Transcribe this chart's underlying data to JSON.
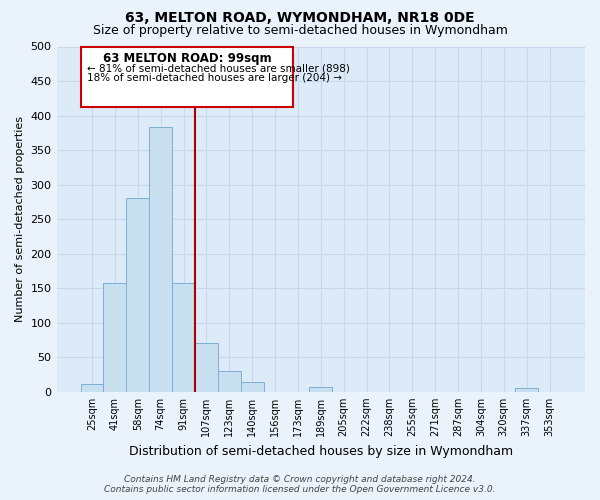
{
  "title": "63, MELTON ROAD, WYMONDHAM, NR18 0DE",
  "subtitle": "Size of property relative to semi-detached houses in Wymondham",
  "xlabel": "Distribution of semi-detached houses by size in Wymondham",
  "ylabel": "Number of semi-detached properties",
  "footer_line1": "Contains HM Land Registry data © Crown copyright and database right 2024.",
  "footer_line2": "Contains public sector information licensed under the Open Government Licence v3.0.",
  "bar_labels": [
    "25sqm",
    "41sqm",
    "58sqm",
    "74sqm",
    "91sqm",
    "107sqm",
    "123sqm",
    "140sqm",
    "156sqm",
    "173sqm",
    "189sqm",
    "205sqm",
    "222sqm",
    "238sqm",
    "255sqm",
    "271sqm",
    "287sqm",
    "304sqm",
    "320sqm",
    "337sqm",
    "353sqm"
  ],
  "bar_values": [
    12,
    157,
    280,
    383,
    158,
    71,
    30,
    14,
    0,
    0,
    7,
    0,
    0,
    0,
    0,
    0,
    0,
    0,
    0,
    5,
    0
  ],
  "bar_color": "#c8dff0",
  "bar_edge_color": "#7aafd4",
  "vline_color": "#aa0000",
  "ylim": [
    0,
    500
  ],
  "yticks": [
    0,
    50,
    100,
    150,
    200,
    250,
    300,
    350,
    400,
    450,
    500
  ],
  "annotation_title": "63 MELTON ROAD: 99sqm",
  "annotation_line1": "← 81% of semi-detached houses are smaller (898)",
  "annotation_line2": "18% of semi-detached houses are larger (204) →",
  "annotation_box_color": "#ffffff",
  "annotation_box_edge": "#cc0000",
  "grid_color": "#c8d8ec",
  "plot_bg_color": "#ddeaf7",
  "fig_bg_color": "#eaf2fb",
  "title_fontsize": 10,
  "subtitle_fontsize": 9
}
